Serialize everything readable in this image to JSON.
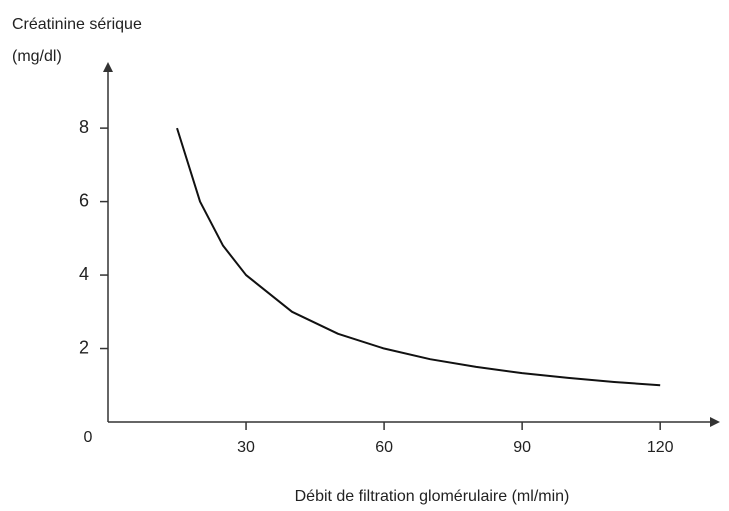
{
  "chart_data": {
    "type": "line",
    "title": "Créatinine sérique",
    "y_label": "(mg/dl)",
    "x_label": "Débit de filtration glomérulaire (ml/min)",
    "x": [
      15,
      20,
      25,
      30,
      40,
      50,
      60,
      70,
      80,
      90,
      100,
      110,
      120
    ],
    "series": [
      {
        "name": null,
        "color": "#111111",
        "values": [
          8,
          6,
          4.8,
          4,
          3,
          2.4,
          2,
          1.71,
          1.5,
          1.33,
          1.2,
          1.09,
          1
        ]
      }
    ],
    "xlim": [
      0,
      133
    ],
    "ylim": [
      0,
      9.8
    ],
    "xticks": [
      30,
      60,
      90,
      120
    ],
    "yticks": [
      0,
      2,
      4,
      6,
      8
    ],
    "grid": false
  }
}
